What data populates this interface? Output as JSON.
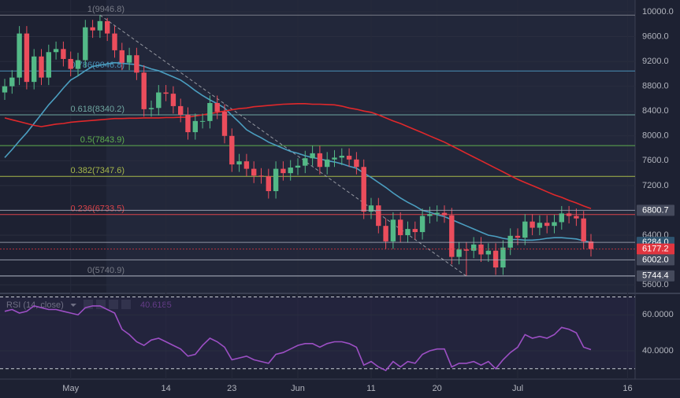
{
  "chart_data": {
    "type": "candlestick",
    "categories": [
      null,
      null,
      null,
      null,
      null,
      null,
      null,
      null,
      null,
      "May",
      null,
      null,
      null,
      null,
      null,
      null,
      null,
      null,
      null,
      null,
      null,
      null,
      "14",
      null,
      null,
      null,
      null,
      null,
      null,
      null,
      null,
      "23",
      null,
      null,
      null,
      null,
      null,
      null,
      null,
      null,
      "Jun",
      null,
      null,
      null,
      null,
      null,
      null,
      null,
      null,
      null,
      "11",
      null,
      null,
      null,
      null,
      null,
      null,
      null,
      null,
      "20",
      null,
      null,
      null,
      null,
      null,
      null,
      null,
      null,
      null,
      null,
      "Jul",
      null,
      null,
      null,
      null,
      null,
      null,
      null,
      null,
      null,
      null,
      null,
      null,
      null,
      null,
      "16"
    ],
    "open": [
      8700,
      8800,
      8940,
      9650,
      8870,
      9280,
      8940,
      9350,
      9400,
      9240,
      9080,
      9220,
      9750,
      9700,
      9850,
      9650,
      9380,
      9180,
      9300,
      9020,
      8430,
      8450,
      8700,
      8680,
      8480,
      8340,
      8060,
      8240,
      8240,
      8530,
      8390,
      8000,
      7540,
      7590,
      7470,
      7360,
      7350,
      7110,
      7470,
      7400,
      7490,
      7520,
      7640,
      7720,
      7500,
      7620,
      7650,
      7680,
      7620,
      7500,
      6780,
      6880,
      6550,
      6300,
      6650,
      6400,
      6500,
      6450,
      6710,
      6740,
      6760,
      6720,
      6050,
      6170,
      6150,
      6250,
      6090,
      6150,
      5880,
      6200,
      6390,
      6360,
      6620,
      6520,
      6600,
      6550,
      6610,
      6750,
      6710,
      6670,
      6300,
      null,
      null,
      null,
      null,
      null
    ],
    "high": [
      8920,
      9060,
      9770,
      9770,
      9400,
      9400,
      9470,
      9520,
      9520,
      9360,
      9340,
      9870,
      9870,
      9946.8,
      9900,
      9770,
      9500,
      9420,
      9420,
      9140,
      8570,
      8820,
      8820,
      8800,
      8600,
      8460,
      8360,
      8360,
      8650,
      8650,
      8510,
      8120,
      7710,
      7710,
      7590,
      7480,
      7470,
      7590,
      7590,
      7610,
      7640,
      7760,
      7840,
      7840,
      7740,
      7770,
      7800,
      7800,
      7740,
      7620,
      7000,
      7000,
      6670,
      6770,
      6770,
      6620,
      6620,
      6830,
      6860,
      6880,
      6880,
      6840,
      6290,
      6290,
      6370,
      6370,
      6270,
      6270,
      6320,
      6510,
      6510,
      6740,
      6740,
      6720,
      6720,
      6730,
      6870,
      6870,
      6830,
      6790,
      6420,
      null,
      null,
      null,
      null,
      null
    ],
    "low": [
      8580,
      8680,
      8820,
      8750,
      8750,
      8820,
      8820,
      9230,
      9120,
      8960,
      8960,
      9100,
      9580,
      9580,
      9530,
      9260,
      9060,
      9060,
      8900,
      8310,
      8310,
      8330,
      8560,
      8360,
      8220,
      7940,
      7940,
      8120,
      8120,
      8270,
      7880,
      7420,
      7420,
      7350,
      7240,
      7230,
      6990,
      6990,
      7280,
      7280,
      7370,
      7400,
      7520,
      7380,
      7380,
      7500,
      7530,
      7500,
      7380,
      6660,
      6660,
      6430,
      6180,
      6180,
      6280,
      6280,
      6330,
      6330,
      6590,
      6620,
      6600,
      5930,
      5930,
      5740.9,
      6030,
      5970,
      5970,
      5760,
      5760,
      6080,
      6240,
      6240,
      6400,
      6400,
      6430,
      6430,
      6490,
      6590,
      6550,
      6180,
      6057.2,
      null,
      null,
      null,
      null,
      null
    ],
    "close": [
      8800,
      8940,
      9650,
      8870,
      9280,
      8940,
      9350,
      9400,
      9240,
      9080,
      9220,
      9750,
      9700,
      9850,
      9650,
      9380,
      9180,
      9300,
      9020,
      8430,
      8450,
      8700,
      8680,
      8480,
      8340,
      8060,
      8240,
      8240,
      8530,
      8390,
      8000,
      7540,
      7590,
      7470,
      7360,
      7350,
      7110,
      7470,
      7400,
      7490,
      7520,
      7640,
      7720,
      7500,
      7620,
      7650,
      7680,
      7620,
      7500,
      6780,
      6880,
      6550,
      6300,
      6650,
      6400,
      6500,
      6450,
      6710,
      6740,
      6760,
      6720,
      6050,
      6170,
      6150,
      6250,
      6090,
      6150,
      5880,
      6200,
      6390,
      6360,
      6620,
      6520,
      6600,
      6550,
      6610,
      6750,
      6710,
      6670,
      6300,
      6177.2,
      null,
      null,
      null,
      null,
      null
    ],
    "up_color": "#53b987",
    "down_color": "#eb4d5c",
    "ylim": [
      5475,
      10190
    ],
    "yticks": [
      {
        "value": 10000,
        "label": "10000.0"
      },
      {
        "value": 9600,
        "label": "9600.0"
      },
      {
        "value": 9200,
        "label": "9200.0"
      },
      {
        "value": 8800,
        "label": "8800.0"
      },
      {
        "value": 8400,
        "label": "8400.0"
      },
      {
        "value": 8000,
        "label": "8000.0"
      },
      {
        "value": 7600,
        "label": "7600.0"
      },
      {
        "value": 7200,
        "label": "7200.0"
      },
      {
        "value": 6800,
        "label": "6800.0"
      },
      {
        "value": 6400,
        "label": "6400.0"
      },
      {
        "value": 6000,
        "label": "6000.0"
      },
      {
        "value": 5600,
        "label": "5600.0"
      }
    ],
    "grid": true,
    "moving_averages": [
      {
        "color": "#4b9ec0",
        "values": [
          7650,
          7780,
          7920,
          8050,
          8200,
          8350,
          8500,
          8630,
          8770,
          8900,
          8970,
          9050,
          9120,
          9140,
          9160,
          9180,
          9170,
          9160,
          9150,
          9120,
          9080,
          9050,
          9000,
          8950,
          8900,
          8820,
          8730,
          8650,
          8580,
          8520,
          8450,
          8330,
          8220,
          8100,
          8030,
          7970,
          7900,
          7850,
          7800,
          7750,
          7720,
          7680,
          7650,
          7630,
          7600,
          7580,
          7550,
          7510,
          7480,
          7400,
          7330,
          7250,
          7170,
          7080,
          7000,
          6930,
          6870,
          6800,
          6770,
          6730,
          6700,
          6650,
          6600,
          6550,
          6500,
          6450,
          6400,
          6380,
          6350,
          6330,
          6330,
          6320,
          6320,
          6330,
          6350,
          6360,
          6360,
          6350,
          6340,
          6310,
          6284,
          null,
          null,
          null,
          null,
          null
        ]
      },
      {
        "color": "#e0282b",
        "values": [
          8290,
          8260,
          8230,
          8200,
          8170,
          8150,
          8170,
          8190,
          8200,
          8220,
          8230,
          8240,
          8250,
          8260,
          8270,
          8280,
          8280,
          8285,
          8285,
          8290,
          8290,
          8290,
          8295,
          8295,
          8300,
          8300,
          8320,
          8340,
          8360,
          8380,
          8400,
          8420,
          8440,
          8450,
          8470,
          8480,
          8490,
          8500,
          8510,
          8515,
          8520,
          8520,
          8510,
          8510,
          8505,
          8500,
          8480,
          8450,
          8430,
          8400,
          8380,
          8340,
          8290,
          8240,
          8200,
          8150,
          8100,
          8050,
          8000,
          7950,
          7900,
          7840,
          7780,
          7720,
          7660,
          7600,
          7540,
          7480,
          7420,
          7360,
          7300,
          7250,
          7200,
          7150,
          7100,
          7050,
          7010,
          6960,
          6920,
          6870,
          6830,
          null,
          null,
          null,
          null,
          null
        ]
      }
    ],
    "fib_levels": [
      {
        "label": "1(9946.8)",
        "value": 9946.8,
        "color": "#787b86"
      },
      {
        "label": "0.786(9046.8)",
        "value": 9046.8,
        "color": "#4a90b8"
      },
      {
        "label": "0.618(8340.2)",
        "value": 8340.2,
        "color": "#6fa6a0"
      },
      {
        "label": "0.5(7843.9)",
        "value": 7843.9,
        "color": "#5fae4f"
      },
      {
        "label": "0.382(7347.6)",
        "value": 7347.6,
        "color": "#a6b84a"
      },
      {
        "label": "0.236(6733.5)",
        "value": 6733.5,
        "color": "#d9434a"
      },
      {
        "label": "0(5740.9)",
        "value": 5740.9,
        "color": "#787b86"
      }
    ],
    "price_labels": [
      {
        "label": "6800.7",
        "value": 6800.7,
        "color": "#454a5c"
      },
      {
        "label": "6284.0",
        "value": 6284.0,
        "color": "#2e5470"
      },
      {
        "label": "6177.2",
        "value": 6177.2,
        "color": "#e0353f",
        "dashed": true
      },
      {
        "label": "6002.0",
        "value": 6002.0,
        "color": "#454a5c"
      },
      {
        "label": "5744.4",
        "value": 5744.4,
        "color": "#454a5c"
      }
    ],
    "rsi": {
      "name": "RSI (14, close)",
      "color": "#9c4fc4",
      "values": [
        62,
        63,
        61,
        62,
        65,
        64,
        63,
        63,
        62,
        61,
        60,
        64,
        65,
        65,
        63,
        61,
        52,
        49,
        45,
        43,
        46,
        47,
        45,
        43,
        41,
        37,
        38,
        43,
        47,
        45,
        42,
        35,
        36,
        37,
        35,
        34,
        33,
        38,
        39,
        41,
        43,
        44,
        44,
        42,
        44,
        45,
        45,
        44,
        42,
        32,
        34,
        31,
        29,
        34,
        31,
        34,
        33,
        38,
        40,
        41,
        41,
        31,
        33,
        33,
        34,
        32,
        34,
        30,
        35,
        39,
        42,
        49,
        47,
        48,
        47,
        49,
        53,
        52,
        50,
        42,
        40.6185,
        null,
        null,
        null,
        null,
        null
      ],
      "ylim": [
        24.2,
        71.1
      ],
      "yticks": [
        {
          "value": 60,
          "label": "60.0000"
        },
        {
          "value": 40,
          "label": "40.0000"
        }
      ],
      "bands": [
        70,
        30
      ]
    }
  }
}
